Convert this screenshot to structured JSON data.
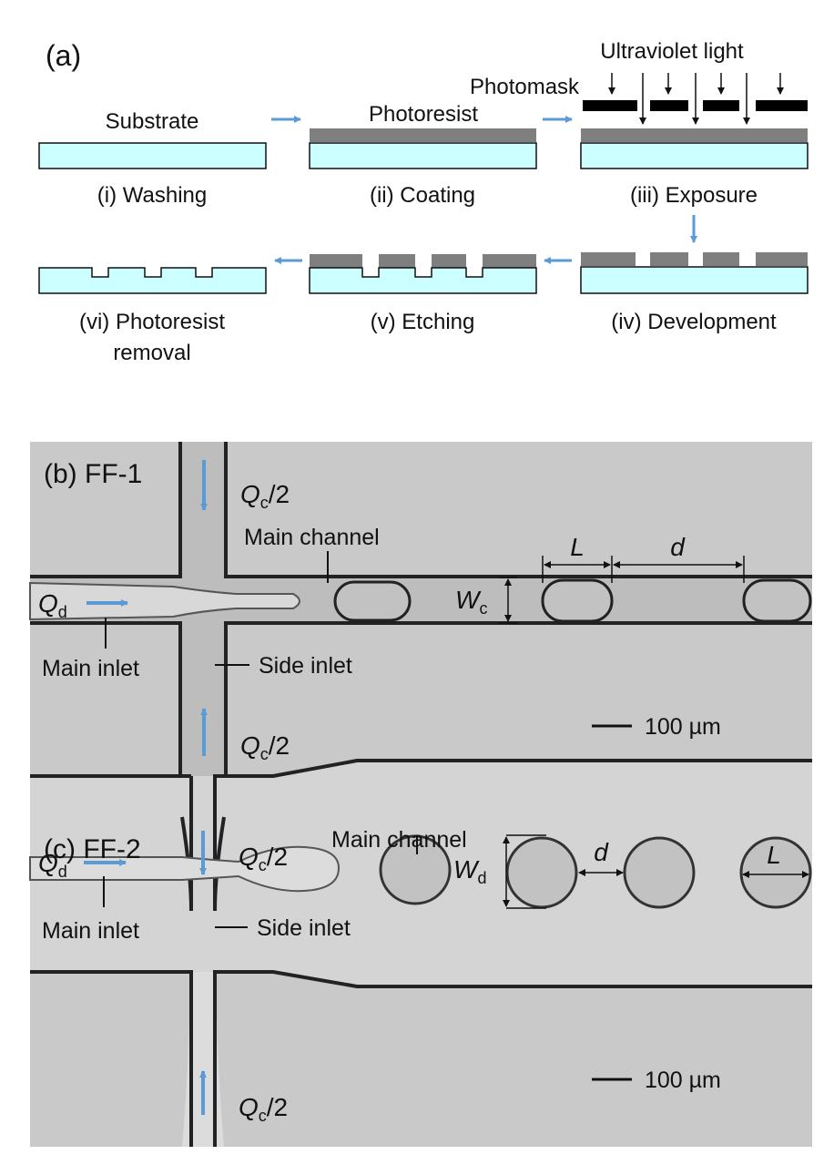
{
  "panel_a": {
    "label": "(a)",
    "substrate_label": "Substrate",
    "photoresist_label": "Photoresist",
    "photomask_label": "Photomask",
    "uv_label": "Ultraviolet light",
    "steps": {
      "washing": "(i) Washing",
      "coating": "(ii) Coating",
      "exposure": "(iii) Exposure",
      "development": "(iv) Development",
      "etching": "(v) Etching",
      "removal_line1": "(vi) Photoresist",
      "removal_line2": "removal"
    },
    "colors": {
      "substrate": "#ccffff",
      "resist": "#7f7f7f",
      "mask": "#000000",
      "arrow": "#5b9bd5"
    }
  },
  "panel_b": {
    "label": "(b) FF-1",
    "qc_top": "Q",
    "qc_top_sub": "c",
    "qc_top_rest": "/2",
    "qc_bot": "Q",
    "qc_bot_sub": "c",
    "qc_bot_rest": "/2",
    "qd": "Q",
    "qd_sub": "d",
    "main_channel": "Main channel",
    "main_inlet": "Main inlet",
    "side_inlet": "Side inlet",
    "length": "L",
    "spacing": "d",
    "width": "W",
    "width_sub": "c",
    "scale": "100 µm"
  },
  "panel_c": {
    "label": "(c) FF-2",
    "qc_top": "Q",
    "qc_top_sub": "c",
    "qc_top_rest": "/2",
    "qc_bot": "Q",
    "qc_bot_sub": "c",
    "qc_bot_rest": "/2",
    "qd": "Q",
    "qd_sub": "d",
    "main_channel": "Main channel",
    "main_inlet": "Main inlet",
    "side_inlet": "Side inlet",
    "length": "L",
    "spacing": "d",
    "width": "W",
    "width_sub": "d",
    "scale": "100 µm"
  }
}
